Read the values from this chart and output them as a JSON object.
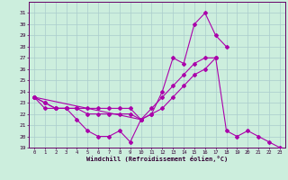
{
  "xlabel": "Windchill (Refroidissement éolien,°C)",
  "color": "#aa00aa",
  "bg_color": "#cceedd",
  "grid_color": "#aacccc",
  "ylim": [
    19,
    32
  ],
  "yticks": [
    19,
    20,
    21,
    22,
    23,
    24,
    25,
    26,
    27,
    28,
    29,
    30,
    31
  ],
  "xticks": [
    0,
    1,
    2,
    3,
    4,
    5,
    6,
    7,
    8,
    9,
    10,
    11,
    12,
    13,
    14,
    15,
    16,
    17,
    18,
    19,
    20,
    21,
    22,
    23
  ],
  "line1_x": [
    0,
    1,
    2,
    3,
    4,
    5,
    6,
    7,
    8,
    9,
    10
  ],
  "line1_y": [
    23.5,
    23.0,
    22.5,
    22.5,
    21.5,
    20.5,
    20.0,
    20.0,
    20.5,
    19.5,
    21.5
  ],
  "line2_x": [
    0,
    1,
    2,
    3,
    4,
    5,
    6,
    7,
    8,
    9,
    10,
    11,
    12,
    13,
    14,
    15,
    16,
    17,
    18,
    19,
    20,
    21,
    22,
    23
  ],
  "line2_y": [
    23.5,
    23.0,
    22.5,
    22.5,
    22.5,
    22.0,
    22.0,
    22.0,
    22.0,
    22.0,
    21.5,
    22.0,
    22.5,
    23.5,
    24.5,
    25.5,
    26.0,
    27.0,
    20.5,
    20.0,
    20.5,
    20.0,
    19.5,
    19.0
  ],
  "line3_x": [
    0,
    1,
    2,
    3,
    4,
    5,
    6,
    7,
    8,
    9,
    10,
    11,
    12,
    13,
    14,
    15,
    16,
    17
  ],
  "line3_y": [
    23.5,
    22.5,
    22.5,
    22.5,
    22.5,
    22.5,
    22.5,
    22.5,
    22.5,
    22.5,
    21.5,
    22.5,
    23.5,
    24.5,
    25.5,
    26.5,
    27.0,
    27.0
  ],
  "line4_x": [
    0,
    10,
    11,
    12,
    13,
    14,
    15,
    16,
    17,
    18
  ],
  "line4_y": [
    23.5,
    21.5,
    22.0,
    24.0,
    27.0,
    26.5,
    30.0,
    31.0,
    29.0,
    28.0
  ]
}
